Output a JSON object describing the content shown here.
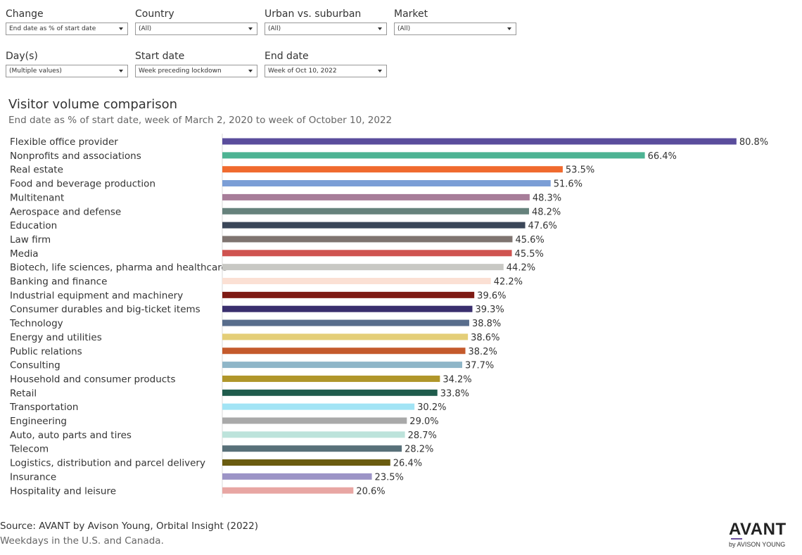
{
  "filters": {
    "change": {
      "label": "Change",
      "value": "End date as % of start date"
    },
    "country": {
      "label": "Country",
      "value": "(All)"
    },
    "urban": {
      "label": "Urban vs. suburban",
      "value": "(All)"
    },
    "market": {
      "label": "Market",
      "value": "(All)"
    },
    "days": {
      "label": "Day(s)",
      "value": "(Multiple values)"
    },
    "start": {
      "label": "Start date",
      "value": "Week preceding lockdown"
    },
    "end": {
      "label": "End date",
      "value": "Week of Oct 10, 2022"
    }
  },
  "chart_data": {
    "type": "bar",
    "orientation": "horizontal",
    "title": "Visitor volume comparison",
    "subtitle": "End date as % of start date, week of March 2, 2020 to week of October 10, 2022",
    "value_suffix": "%",
    "xlim": [
      0,
      100
    ],
    "categories": [
      "Flexible office provider",
      "Nonprofits and associations",
      "Real estate",
      "Food and beverage production",
      "Multitenant",
      "Aerospace and defense",
      "Education",
      "Law firm",
      "Media",
      "Biotech, life sciences, pharma and healthcare",
      "Banking and finance",
      "Industrial equipment and machinery",
      "Consumer durables and big-ticket items",
      "Technology",
      "Energy and utilities",
      "Public relations",
      "Consulting",
      "Household and consumer products",
      "Retail",
      "Transportation",
      "Engineering",
      "Auto, auto parts and tires",
      "Telecom",
      "Logistics, distribution and parcel delivery",
      "Insurance",
      "Hospitality and leisure"
    ],
    "values": [
      80.8,
      66.4,
      53.5,
      51.6,
      48.3,
      48.2,
      47.6,
      45.6,
      45.5,
      44.2,
      42.2,
      39.6,
      39.3,
      38.8,
      38.6,
      38.2,
      37.7,
      34.2,
      33.8,
      30.2,
      29.0,
      28.7,
      28.2,
      26.4,
      23.5,
      20.6
    ],
    "colors": [
      "#5a4d9c",
      "#4db393",
      "#f06a2e",
      "#7b9ed6",
      "#a77d99",
      "#66827c",
      "#3a4658",
      "#7f7470",
      "#cf5350",
      "#c8c8c4",
      "#fbe0d4",
      "#7e1a14",
      "#3a2f6e",
      "#586d8c",
      "#e4ce78",
      "#c45a2c",
      "#8fb6c8",
      "#b0962a",
      "#1f5c4c",
      "#a2e4f5",
      "#a9a9a9",
      "#bde3db",
      "#587079",
      "#6a5c10",
      "#9c94c6",
      "#e8a6a3"
    ]
  },
  "footer": {
    "source": "Source: AVANT by Avison Young, Orbital Insight (2022)",
    "note": "Weekdays in the U.S. and Canada."
  },
  "logo": {
    "main": "AVANT",
    "sub": "by AVISON YOUNG"
  }
}
